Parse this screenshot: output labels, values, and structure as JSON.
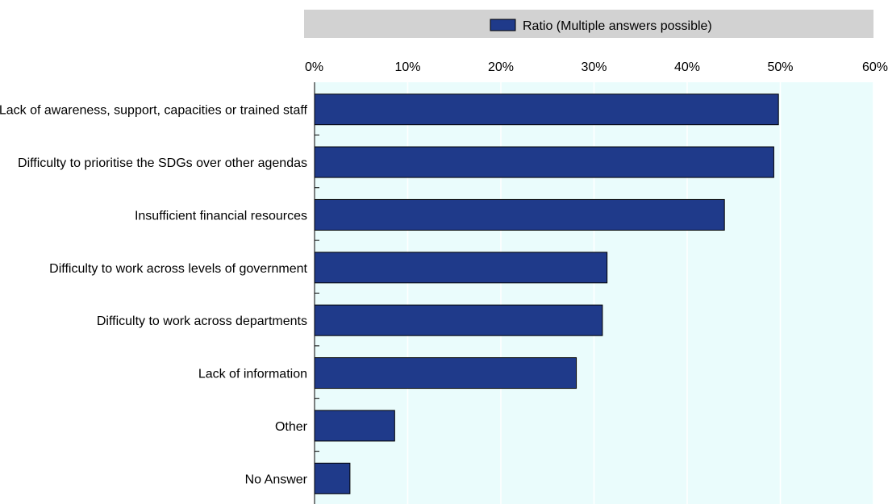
{
  "chart_data": {
    "type": "bar",
    "orientation": "horizontal",
    "categories": [
      "Lack of awareness, support, capacities or trained staff",
      "Difficulty to prioritise the SDGs over other agendas",
      "Insufficient financial resources",
      "Difficulty to work across levels of government",
      "Difficulty to work across departments",
      "Lack of information",
      "Other",
      "No Answer"
    ],
    "series": [
      {
        "name": "Ratio (Multiple answers possible)",
        "values": [
          49.8,
          49.3,
          44.0,
          31.4,
          30.9,
          28.1,
          8.6,
          3.8
        ],
        "color": "#1f3a8a"
      }
    ],
    "xlim": [
      0,
      60
    ],
    "x_ticks": [
      0,
      10,
      20,
      30,
      40,
      50,
      60
    ],
    "x_tick_labels": [
      "0%",
      "10%",
      "20%",
      "30%",
      "40%",
      "50%",
      "60%"
    ],
    "x_axis_position": "top",
    "legend_position": "top",
    "grid": true,
    "colors": {
      "bar": "#1f3a8a",
      "plot_background": "#eafcfc",
      "legend_background": "#d2d2d2",
      "gridline": "#ffffff"
    }
  }
}
